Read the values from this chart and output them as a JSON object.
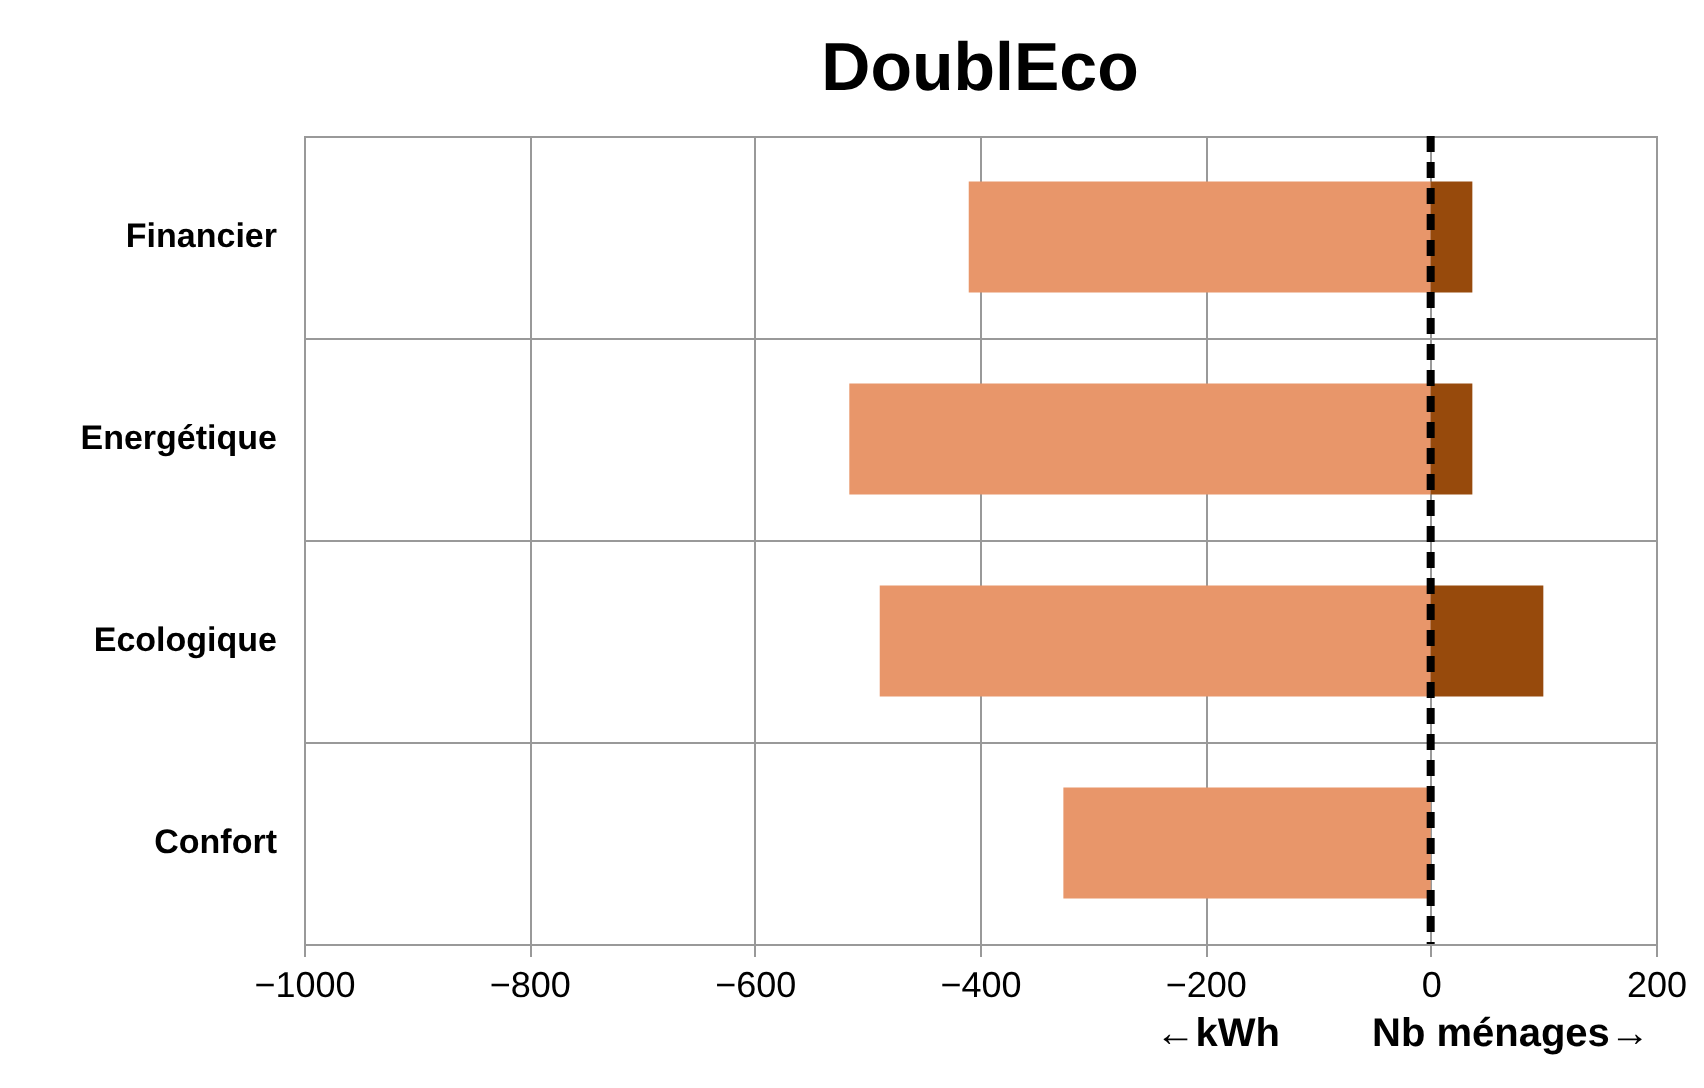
{
  "chart_data": {
    "type": "bar",
    "title": "DoublEco",
    "orientation": "horizontal",
    "stacked": true,
    "categories": [
      "Financier",
      "Energétique",
      "Ecologique",
      "Confort"
    ],
    "series": [
      {
        "color": "#e8966a",
        "values": [
          -410,
          -516,
          -489,
          -326
        ]
      },
      {
        "color": "#974a0c",
        "values": [
          37,
          37,
          100,
          null
        ]
      }
    ],
    "xlim": [
      -1000,
      200
    ],
    "xticks": [
      -1000,
      -800,
      -600,
      -400,
      -200,
      0,
      200
    ],
    "grid": true,
    "ref_lines": [
      {
        "axis": "x",
        "value": 0,
        "line_style": "dashed",
        "color": "#000000"
      }
    ],
    "annotations": [
      "←kWh",
      "Nb ménages→"
    ]
  }
}
